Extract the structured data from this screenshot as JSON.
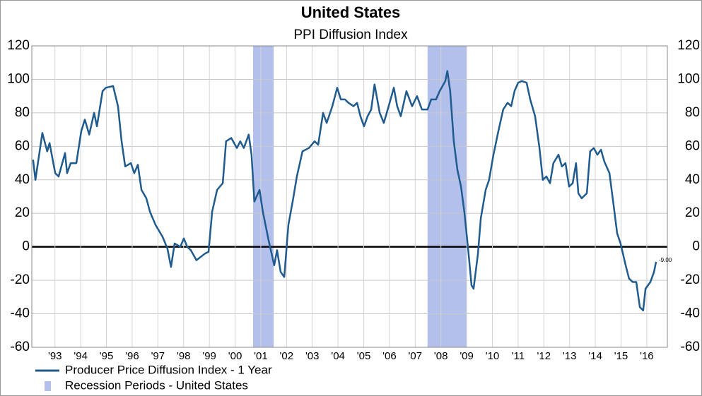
{
  "chart_data": {
    "type": "line",
    "title": "United States",
    "subtitle": "PPI Diffusion Index",
    "x": [
      1992.65,
      1992.74,
      1993.01,
      1993.2,
      1993.29,
      1993.51,
      1993.64,
      1993.89,
      1993.97,
      1994.11,
      1994.33,
      1994.52,
      1994.66,
      1994.83,
      1995.02,
      1995.13,
      1995.35,
      1995.48,
      1995.76,
      1995.95,
      1996.09,
      1996.23,
      1996.45,
      1996.58,
      1996.72,
      1996.86,
      1997.05,
      1997.19,
      1997.41,
      1997.68,
      1997.87,
      1998.01,
      1998.15,
      1998.37,
      1998.51,
      1998.64,
      1998.78,
      1999.0,
      1999.33,
      1999.47,
      1999.61,
      1999.8,
      2000.02,
      2000.15,
      2000.35,
      2000.57,
      2000.7,
      2000.84,
      2001.03,
      2001.14,
      2001.25,
      2001.45,
      2001.58,
      2001.8,
      2002.02,
      2002.13,
      2002.27,
      2002.41,
      2002.57,
      2002.76,
      2002.9,
      2003.12,
      2003.37,
      2003.59,
      2003.73,
      2003.92,
      2004.06,
      2004.28,
      2004.47,
      2004.61,
      2004.77,
      2004.91,
      2005.1,
      2005.24,
      2005.37,
      2005.51,
      2005.65,
      2005.79,
      2005.92,
      2006.12,
      2006.28,
      2006.47,
      2006.67,
      2006.8,
      2006.94,
      2007.16,
      2007.38,
      2007.57,
      2007.76,
      2007.98,
      2008.12,
      2008.31,
      2008.45,
      2008.67,
      2008.75,
      2008.86,
      2009.0,
      2009.14,
      2009.28,
      2009.41,
      2009.55,
      2009.69,
      2009.77,
      2009.94,
      2010.05,
      2010.24,
      2010.37,
      2010.54,
      2010.73,
      2010.92,
      2011.09,
      2011.23,
      2011.36,
      2011.5,
      2011.64,
      2011.83,
      2011.97,
      2012.16,
      2012.33,
      2012.46,
      2012.6,
      2012.74,
      2012.87,
      2013.07,
      2013.2,
      2013.34,
      2013.48,
      2013.62,
      2013.75,
      2013.84,
      2013.97,
      2014.17,
      2014.3,
      2014.44,
      2014.58,
      2014.72,
      2014.85,
      2015.05,
      2015.21,
      2015.35,
      2015.48,
      2015.68,
      2015.81,
      2015.95,
      2016.09,
      2016.23,
      2016.36,
      2016.45,
      2016.64,
      2016.78,
      2016.86
    ],
    "series": [
      {
        "name": "Producer Price Diffusion Index - 1 Year",
        "color": "#1f5b8e",
        "end_label": "-9.00",
        "values": [
          52,
          40,
          68,
          57,
          62,
          44,
          42,
          56,
          44,
          50,
          50,
          69,
          76,
          67,
          80,
          72,
          93,
          95,
          96,
          84,
          63,
          48,
          50,
          44,
          49,
          34,
          29,
          21,
          13,
          6,
          -1,
          -12,
          2,
          0,
          5,
          0,
          -2,
          -8,
          -4,
          -3,
          21,
          34,
          38,
          63,
          65,
          59,
          63,
          59,
          67,
          55,
          27,
          34,
          21,
          4,
          -11,
          -2,
          -15,
          -18,
          13,
          29,
          42,
          57,
          59,
          63,
          61,
          80,
          74,
          84,
          95,
          88,
          88,
          86,
          84,
          86,
          78,
          72,
          78,
          82,
          97,
          80,
          74,
          84,
          95,
          84,
          78,
          93,
          84,
          90,
          82,
          82,
          88,
          88,
          93,
          99,
          105,
          93,
          63,
          46,
          36,
          21,
          0,
          -23,
          -25,
          -4,
          17,
          34,
          40,
          55,
          69,
          82,
          86,
          84,
          93,
          98,
          99,
          98,
          88,
          78,
          59,
          40,
          42,
          38,
          50,
          55,
          48,
          50,
          36,
          38,
          50,
          32,
          29,
          32,
          57,
          59,
          55,
          58,
          51,
          44,
          25,
          8,
          2,
          -11,
          -19,
          -21,
          -21,
          -36,
          -38,
          -25,
          -21,
          -15,
          -9
        ]
      }
    ],
    "recessions": {
      "name": "Recession Periods - United States",
      "color": "#b4c0ec",
      "periods": [
        [
          2001.2,
          2002.0
        ],
        [
          2007.98,
          2009.5
        ]
      ]
    },
    "xlim": [
      1992.6,
      2017.3
    ],
    "xticks": [
      {
        "value": 1993.5,
        "label": "'93"
      },
      {
        "value": 1994.5,
        "label": "'94"
      },
      {
        "value": 1995.5,
        "label": "'95"
      },
      {
        "value": 1996.5,
        "label": "'96"
      },
      {
        "value": 1997.5,
        "label": "'97"
      },
      {
        "value": 1998.5,
        "label": "'98"
      },
      {
        "value": 1999.5,
        "label": "'99"
      },
      {
        "value": 2000.5,
        "label": "'00"
      },
      {
        "value": 2001.5,
        "label": "'01"
      },
      {
        "value": 2002.5,
        "label": "'02"
      },
      {
        "value": 2003.5,
        "label": "'03"
      },
      {
        "value": 2004.5,
        "label": "'04"
      },
      {
        "value": 2005.5,
        "label": "'05"
      },
      {
        "value": 2006.5,
        "label": "'06"
      },
      {
        "value": 2007.5,
        "label": "'07"
      },
      {
        "value": 2008.5,
        "label": "'08"
      },
      {
        "value": 2009.5,
        "label": "'09"
      },
      {
        "value": 2010.5,
        "label": "'10"
      },
      {
        "value": 2011.5,
        "label": "'11"
      },
      {
        "value": 2012.5,
        "label": "'12"
      },
      {
        "value": 2013.5,
        "label": "'13"
      },
      {
        "value": 2014.5,
        "label": "'14"
      },
      {
        "value": 2015.5,
        "label": "'15"
      },
      {
        "value": 2016.5,
        "label": "'16"
      }
    ],
    "ylim": [
      -60,
      120
    ],
    "yticks": [
      -60,
      -40,
      -20,
      0,
      20,
      40,
      60,
      80,
      100,
      120
    ],
    "y2lim": [
      -60,
      120
    ],
    "y2ticks": [
      -60,
      -40,
      -20,
      0,
      20,
      40,
      60,
      80,
      100,
      120
    ],
    "grid": true,
    "zero_line": true,
    "legend": "bottom-left"
  }
}
